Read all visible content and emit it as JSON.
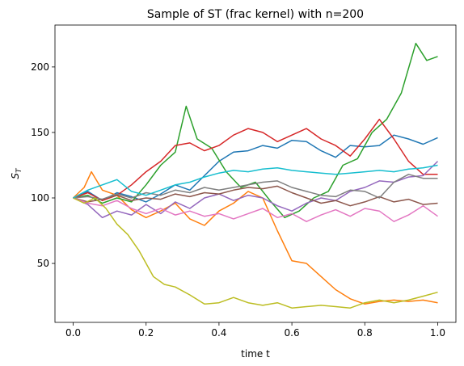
{
  "chart_data": {
    "type": "line",
    "title": "Sample of ST (frac kernel) with n=200",
    "xlabel": "time t",
    "ylabel": "S",
    "ylabel_sub": "T",
    "xlim": [
      -0.05,
      1.05
    ],
    "ylim": [
      5,
      232
    ],
    "xticks": [
      0.0,
      0.2,
      0.4,
      0.6,
      0.8,
      1.0
    ],
    "xtick_labels": [
      "0.0",
      "0.2",
      "0.4",
      "0.6",
      "0.8",
      "1.0"
    ],
    "yticks": [
      50,
      100,
      150,
      200
    ],
    "ytick_labels": [
      "50",
      "100",
      "150",
      "200"
    ],
    "grid": false,
    "legend": "none",
    "series": [
      {
        "color": "#1f77b4",
        "points": [
          [
            0,
            100
          ],
          [
            0.04,
            105
          ],
          [
            0.08,
            98
          ],
          [
            0.12,
            104
          ],
          [
            0.16,
            101
          ],
          [
            0.2,
            97
          ],
          [
            0.24,
            103
          ],
          [
            0.28,
            110
          ],
          [
            0.32,
            106
          ],
          [
            0.36,
            117
          ],
          [
            0.4,
            128
          ],
          [
            0.44,
            135
          ],
          [
            0.48,
            136
          ],
          [
            0.52,
            140
          ],
          [
            0.56,
            138
          ],
          [
            0.6,
            144
          ],
          [
            0.64,
            143
          ],
          [
            0.68,
            136
          ],
          [
            0.72,
            131
          ],
          [
            0.76,
            140
          ],
          [
            0.8,
            139
          ],
          [
            0.84,
            140
          ],
          [
            0.88,
            148
          ],
          [
            0.92,
            145
          ],
          [
            0.96,
            141
          ],
          [
            1.0,
            146
          ]
        ]
      },
      {
        "color": "#ff7f0e",
        "points": [
          [
            0,
            100
          ],
          [
            0.03,
            108
          ],
          [
            0.05,
            120
          ],
          [
            0.08,
            106
          ],
          [
            0.12,
            102
          ],
          [
            0.16,
            91
          ],
          [
            0.2,
            85
          ],
          [
            0.24,
            90
          ],
          [
            0.28,
            96
          ],
          [
            0.32,
            84
          ],
          [
            0.36,
            79
          ],
          [
            0.4,
            90
          ],
          [
            0.44,
            96
          ],
          [
            0.48,
            105
          ],
          [
            0.52,
            100
          ],
          [
            0.56,
            75
          ],
          [
            0.6,
            52
          ],
          [
            0.64,
            50
          ],
          [
            0.68,
            40
          ],
          [
            0.72,
            30
          ],
          [
            0.76,
            23
          ],
          [
            0.8,
            19
          ],
          [
            0.84,
            21
          ],
          [
            0.88,
            22
          ],
          [
            0.92,
            21
          ],
          [
            0.96,
            22
          ],
          [
            1.0,
            20
          ]
        ]
      },
      {
        "color": "#2ca02c",
        "points": [
          [
            0,
            100
          ],
          [
            0.04,
            102
          ],
          [
            0.08,
            96
          ],
          [
            0.12,
            100
          ],
          [
            0.16,
            97
          ],
          [
            0.2,
            110
          ],
          [
            0.24,
            125
          ],
          [
            0.28,
            135
          ],
          [
            0.31,
            170
          ],
          [
            0.34,
            145
          ],
          [
            0.38,
            138
          ],
          [
            0.42,
            120
          ],
          [
            0.46,
            108
          ],
          [
            0.5,
            112
          ],
          [
            0.54,
            98
          ],
          [
            0.58,
            85
          ],
          [
            0.62,
            90
          ],
          [
            0.66,
            100
          ],
          [
            0.7,
            105
          ],
          [
            0.74,
            125
          ],
          [
            0.78,
            130
          ],
          [
            0.82,
            150
          ],
          [
            0.86,
            160
          ],
          [
            0.9,
            180
          ],
          [
            0.94,
            218
          ],
          [
            0.97,
            205
          ],
          [
            1.0,
            208
          ]
        ]
      },
      {
        "color": "#d62728",
        "points": [
          [
            0,
            100
          ],
          [
            0.04,
            104
          ],
          [
            0.08,
            98
          ],
          [
            0.12,
            102
          ],
          [
            0.16,
            110
          ],
          [
            0.2,
            120
          ],
          [
            0.24,
            128
          ],
          [
            0.28,
            140
          ],
          [
            0.32,
            142
          ],
          [
            0.36,
            136
          ],
          [
            0.4,
            140
          ],
          [
            0.44,
            148
          ],
          [
            0.48,
            153
          ],
          [
            0.52,
            150
          ],
          [
            0.56,
            143
          ],
          [
            0.6,
            148
          ],
          [
            0.64,
            153
          ],
          [
            0.68,
            145
          ],
          [
            0.72,
            140
          ],
          [
            0.76,
            132
          ],
          [
            0.8,
            145
          ],
          [
            0.84,
            160
          ],
          [
            0.88,
            145
          ],
          [
            0.92,
            128
          ],
          [
            0.96,
            118
          ],
          [
            1.0,
            118
          ]
        ]
      },
      {
        "color": "#9467bd",
        "points": [
          [
            0,
            100
          ],
          [
            0.04,
            95
          ],
          [
            0.08,
            85
          ],
          [
            0.12,
            90
          ],
          [
            0.16,
            87
          ],
          [
            0.2,
            95
          ],
          [
            0.24,
            88
          ],
          [
            0.28,
            97
          ],
          [
            0.32,
            92
          ],
          [
            0.36,
            100
          ],
          [
            0.4,
            103
          ],
          [
            0.44,
            98
          ],
          [
            0.48,
            102
          ],
          [
            0.52,
            100
          ],
          [
            0.56,
            94
          ],
          [
            0.6,
            90
          ],
          [
            0.64,
            96
          ],
          [
            0.68,
            100
          ],
          [
            0.72,
            98
          ],
          [
            0.76,
            105
          ],
          [
            0.8,
            108
          ],
          [
            0.84,
            113
          ],
          [
            0.88,
            112
          ],
          [
            0.92,
            116
          ],
          [
            0.96,
            117
          ],
          [
            1.0,
            128
          ]
        ]
      },
      {
        "color": "#8c564b",
        "points": [
          [
            0,
            100
          ],
          [
            0.04,
            97
          ],
          [
            0.08,
            99
          ],
          [
            0.12,
            102
          ],
          [
            0.16,
            98
          ],
          [
            0.2,
            100
          ],
          [
            0.24,
            99
          ],
          [
            0.28,
            103
          ],
          [
            0.32,
            101
          ],
          [
            0.36,
            104
          ],
          [
            0.4,
            103
          ],
          [
            0.44,
            106
          ],
          [
            0.48,
            108
          ],
          [
            0.52,
            107
          ],
          [
            0.56,
            109
          ],
          [
            0.6,
            104
          ],
          [
            0.64,
            100
          ],
          [
            0.68,
            96
          ],
          [
            0.72,
            98
          ],
          [
            0.76,
            94
          ],
          [
            0.8,
            97
          ],
          [
            0.84,
            101
          ],
          [
            0.88,
            97
          ],
          [
            0.92,
            99
          ],
          [
            0.96,
            95
          ],
          [
            1.0,
            96
          ]
        ]
      },
      {
        "color": "#e377c2",
        "points": [
          [
            0,
            100
          ],
          [
            0.04,
            96
          ],
          [
            0.08,
            94
          ],
          [
            0.12,
            98
          ],
          [
            0.16,
            92
          ],
          [
            0.2,
            88
          ],
          [
            0.24,
            92
          ],
          [
            0.28,
            87
          ],
          [
            0.32,
            90
          ],
          [
            0.36,
            86
          ],
          [
            0.4,
            88
          ],
          [
            0.44,
            84
          ],
          [
            0.48,
            88
          ],
          [
            0.52,
            92
          ],
          [
            0.56,
            85
          ],
          [
            0.6,
            88
          ],
          [
            0.64,
            82
          ],
          [
            0.68,
            87
          ],
          [
            0.72,
            91
          ],
          [
            0.76,
            86
          ],
          [
            0.8,
            92
          ],
          [
            0.84,
            90
          ],
          [
            0.88,
            82
          ],
          [
            0.92,
            87
          ],
          [
            0.96,
            94
          ],
          [
            1.0,
            86
          ]
        ]
      },
      {
        "color": "#7f7f7f",
        "points": [
          [
            0,
            100
          ],
          [
            0.04,
            101
          ],
          [
            0.08,
            99
          ],
          [
            0.12,
            103
          ],
          [
            0.16,
            100
          ],
          [
            0.2,
            104
          ],
          [
            0.24,
            102
          ],
          [
            0.28,
            106
          ],
          [
            0.32,
            104
          ],
          [
            0.36,
            108
          ],
          [
            0.4,
            106
          ],
          [
            0.44,
            108
          ],
          [
            0.48,
            110
          ],
          [
            0.52,
            112
          ],
          [
            0.56,
            113
          ],
          [
            0.6,
            108
          ],
          [
            0.64,
            105
          ],
          [
            0.68,
            102
          ],
          [
            0.72,
            101
          ],
          [
            0.76,
            106
          ],
          [
            0.8,
            105
          ],
          [
            0.84,
            100
          ],
          [
            0.88,
            112
          ],
          [
            0.92,
            118
          ],
          [
            0.96,
            115
          ],
          [
            1.0,
            115
          ]
        ]
      },
      {
        "color": "#bcbd22",
        "points": [
          [
            0,
            100
          ],
          [
            0.03,
            96
          ],
          [
            0.06,
            100
          ],
          [
            0.09,
            92
          ],
          [
            0.12,
            80
          ],
          [
            0.15,
            72
          ],
          [
            0.18,
            60
          ],
          [
            0.2,
            50
          ],
          [
            0.22,
            40
          ],
          [
            0.25,
            34
          ],
          [
            0.28,
            32
          ],
          [
            0.32,
            26
          ],
          [
            0.36,
            19
          ],
          [
            0.4,
            20
          ],
          [
            0.44,
            24
          ],
          [
            0.48,
            20
          ],
          [
            0.52,
            18
          ],
          [
            0.56,
            20
          ],
          [
            0.6,
            16
          ],
          [
            0.64,
            17
          ],
          [
            0.68,
            18
          ],
          [
            0.72,
            17
          ],
          [
            0.76,
            16
          ],
          [
            0.8,
            20
          ],
          [
            0.84,
            22
          ],
          [
            0.88,
            20
          ],
          [
            0.92,
            22
          ],
          [
            0.96,
            25
          ],
          [
            1.0,
            28
          ]
        ]
      },
      {
        "color": "#17becf",
        "points": [
          [
            0,
            100
          ],
          [
            0.04,
            106
          ],
          [
            0.08,
            110
          ],
          [
            0.12,
            114
          ],
          [
            0.16,
            105
          ],
          [
            0.2,
            102
          ],
          [
            0.24,
            106
          ],
          [
            0.28,
            110
          ],
          [
            0.32,
            112
          ],
          [
            0.36,
            116
          ],
          [
            0.4,
            119
          ],
          [
            0.44,
            121
          ],
          [
            0.48,
            120
          ],
          [
            0.52,
            122
          ],
          [
            0.56,
            123
          ],
          [
            0.6,
            121
          ],
          [
            0.64,
            120
          ],
          [
            0.68,
            119
          ],
          [
            0.72,
            118
          ],
          [
            0.76,
            119
          ],
          [
            0.8,
            120
          ],
          [
            0.84,
            121
          ],
          [
            0.88,
            120
          ],
          [
            0.92,
            122
          ],
          [
            0.96,
            123
          ],
          [
            1.0,
            125
          ]
        ]
      }
    ]
  }
}
